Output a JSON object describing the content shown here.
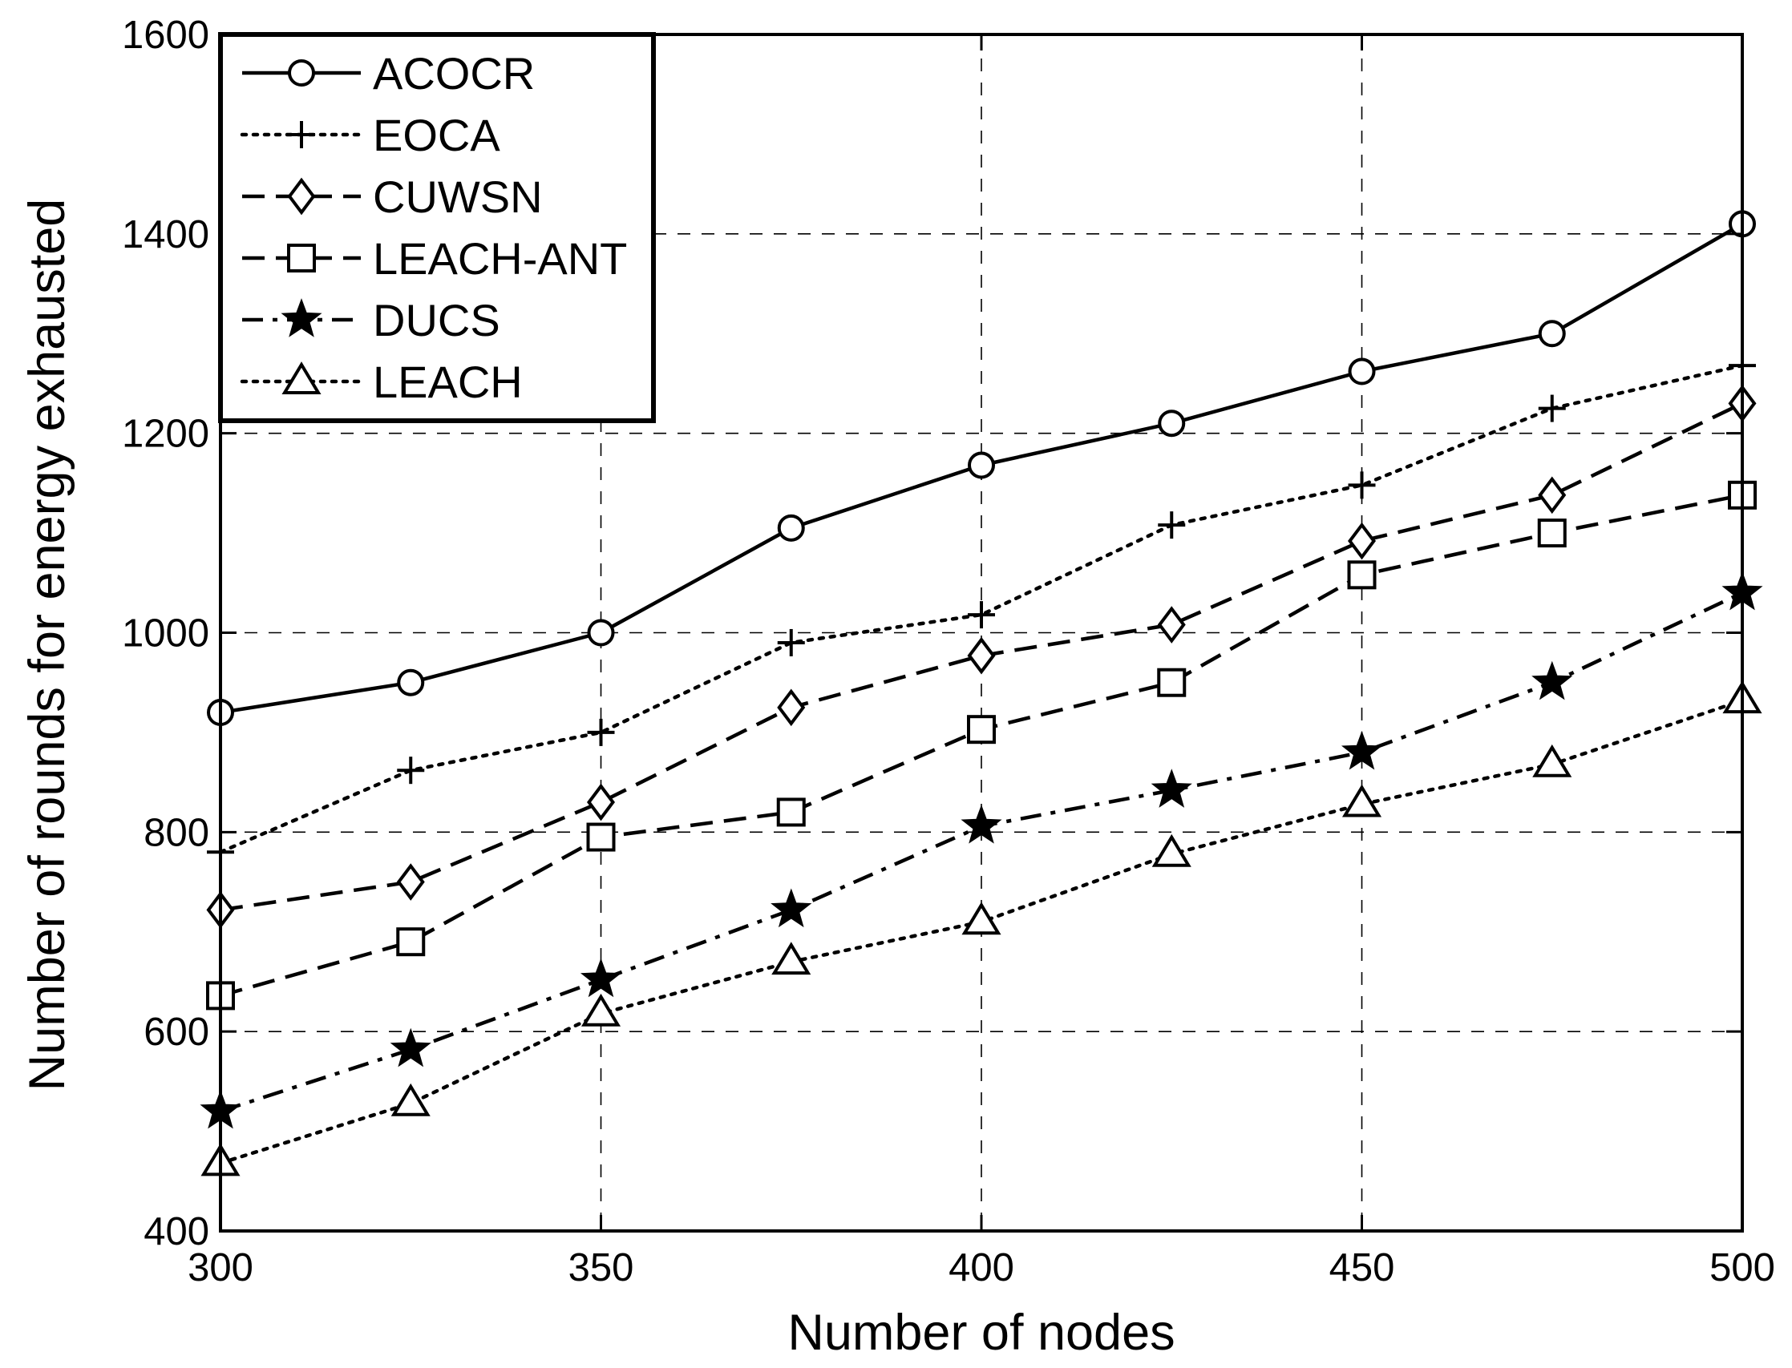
{
  "chart_data": {
    "type": "line",
    "title": "",
    "xlabel": "Number of nodes",
    "ylabel": "Number of rounds for energy exhausted",
    "xlim": [
      300,
      500
    ],
    "ylim": [
      400,
      1600
    ],
    "xticks": [
      300,
      350,
      400,
      450,
      500
    ],
    "yticks": [
      400,
      600,
      800,
      1000,
      1200,
      1400,
      1600
    ],
    "grid": true,
    "legend_position": "top-left",
    "x": [
      300,
      325,
      350,
      375,
      400,
      425,
      450,
      475,
      500
    ],
    "series": [
      {
        "name": "ACOCR",
        "marker": "circle",
        "line": "solid",
        "values": [
          920,
          950,
          1000,
          1105,
          1168,
          1210,
          1262,
          1300,
          1410
        ]
      },
      {
        "name": "EOCA",
        "marker": "plus",
        "line": "dotted",
        "values": [
          780,
          862,
          900,
          990,
          1018,
          1108,
          1148,
          1225,
          1268
        ]
      },
      {
        "name": "CUWSN",
        "marker": "diamond",
        "line": "dashed",
        "values": [
          722,
          750,
          830,
          925,
          977,
          1008,
          1092,
          1138,
          1230
        ]
      },
      {
        "name": "LEACH-ANT",
        "marker": "square",
        "line": "dashed",
        "values": [
          636,
          690,
          795,
          820,
          903,
          950,
          1058,
          1100,
          1138
        ]
      },
      {
        "name": "DUCS",
        "marker": "star",
        "line": "dashdot",
        "values": [
          520,
          582,
          652,
          722,
          806,
          842,
          880,
          950,
          1040
        ]
      },
      {
        "name": "LEACH",
        "marker": "triangle",
        "line": "dotted",
        "values": [
          468,
          528,
          618,
          670,
          710,
          778,
          828,
          868,
          932
        ]
      }
    ]
  }
}
